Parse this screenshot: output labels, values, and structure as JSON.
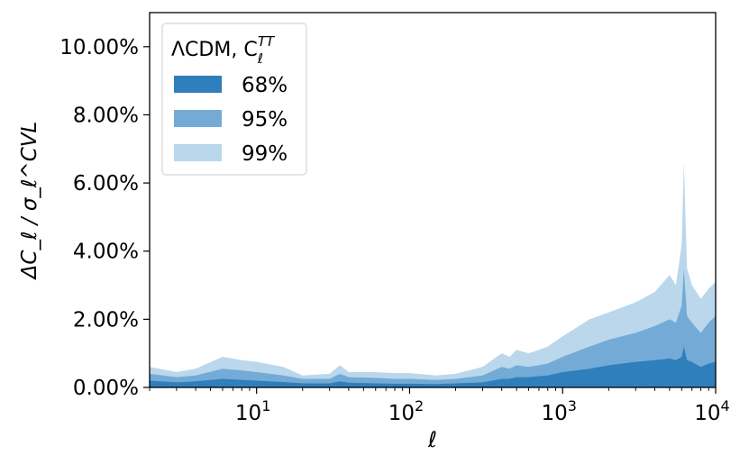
{
  "chart_data": {
    "type": "area",
    "xscale": "log",
    "xlim": [
      2,
      10000
    ],
    "ylim": [
      0,
      11
    ],
    "xlabel": "ℓ",
    "ylabel": "ΔC_ℓ / σ_ℓ^CVL",
    "ytick_values": [
      0,
      2,
      4,
      6,
      8,
      10
    ],
    "ytick_labels": [
      "0.00%",
      "2.00%",
      "4.00%",
      "6.00%",
      "8.00%",
      "10.00%"
    ],
    "xtick_values": [
      10,
      100,
      1000,
      10000
    ],
    "xtick_labels": [
      "10",
      "10",
      "10",
      "10"
    ],
    "xtick_exponents": [
      "1",
      "2",
      "3",
      "4"
    ],
    "legend": {
      "placement": "top-left",
      "title_main": "ΛCDM, C",
      "title_sub": "ℓ",
      "title_sup": "TT",
      "entries": [
        "68%",
        "95%",
        "99%"
      ]
    },
    "colors": {
      "band68": "#2f7fbd",
      "band95": "#74abd6",
      "band99": "#bad7ec"
    },
    "x": [
      2,
      3,
      4,
      6,
      8,
      10,
      15,
      20,
      30,
      35,
      40,
      60,
      80,
      100,
      150,
      200,
      300,
      400,
      450,
      500,
      600,
      700,
      800,
      1000,
      1500,
      2000,
      3000,
      4000,
      5000,
      5500,
      6000,
      6200,
      6500,
      7000,
      8000,
      9000,
      10000
    ],
    "series": [
      {
        "name": "99%",
        "values": [
          0.6,
          0.45,
          0.55,
          0.9,
          0.8,
          0.75,
          0.6,
          0.35,
          0.4,
          0.65,
          0.45,
          0.45,
          0.42,
          0.42,
          0.35,
          0.4,
          0.6,
          1.0,
          0.9,
          1.1,
          1.0,
          1.1,
          1.2,
          1.5,
          2.0,
          2.2,
          2.5,
          2.8,
          3.3,
          3.0,
          4.2,
          6.6,
          3.5,
          3.0,
          2.6,
          2.9,
          3.1
        ]
      },
      {
        "name": "95%",
        "values": [
          0.4,
          0.3,
          0.35,
          0.55,
          0.5,
          0.45,
          0.35,
          0.25,
          0.25,
          0.4,
          0.3,
          0.28,
          0.25,
          0.25,
          0.22,
          0.25,
          0.35,
          0.6,
          0.55,
          0.65,
          0.6,
          0.65,
          0.7,
          0.9,
          1.2,
          1.4,
          1.6,
          1.8,
          2.0,
          1.9,
          2.4,
          3.5,
          2.1,
          1.9,
          1.6,
          1.9,
          2.1
        ]
      },
      {
        "name": "68%",
        "values": [
          0.2,
          0.15,
          0.18,
          0.25,
          0.22,
          0.2,
          0.16,
          0.12,
          0.12,
          0.18,
          0.14,
          0.12,
          0.11,
          0.11,
          0.1,
          0.12,
          0.15,
          0.25,
          0.25,
          0.3,
          0.3,
          0.33,
          0.35,
          0.45,
          0.55,
          0.65,
          0.75,
          0.8,
          0.85,
          0.8,
          0.9,
          1.2,
          0.8,
          0.75,
          0.6,
          0.7,
          0.75
        ]
      }
    ]
  }
}
